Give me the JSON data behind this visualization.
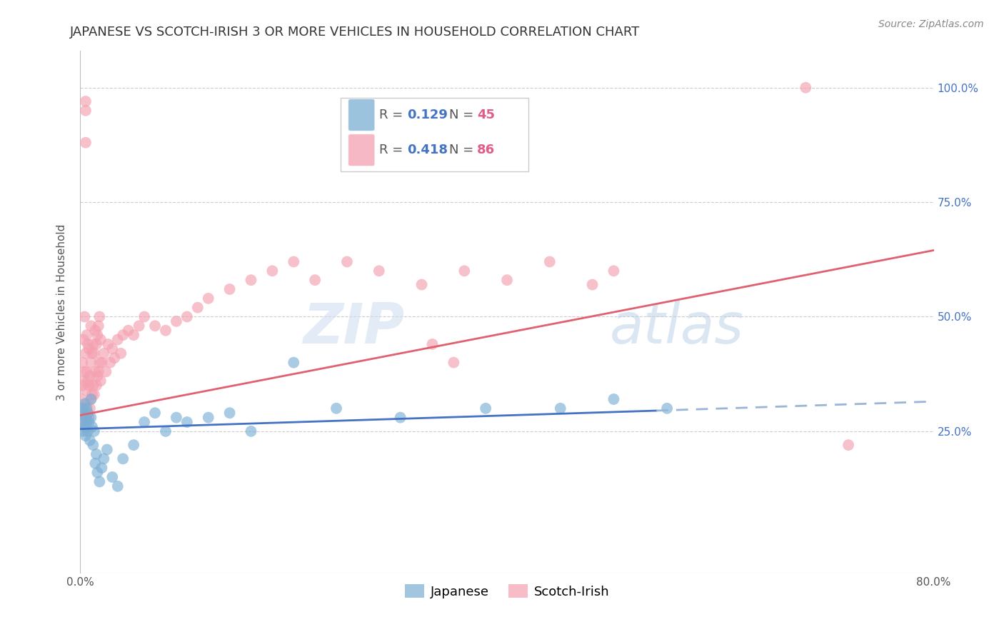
{
  "title": "JAPANESE VS SCOTCH-IRISH 3 OR MORE VEHICLES IN HOUSEHOLD CORRELATION CHART",
  "source": "Source: ZipAtlas.com",
  "ylabel": "3 or more Vehicles in Household",
  "xlim": [
    0.0,
    0.8
  ],
  "ylim": [
    -0.06,
    1.08
  ],
  "grid_color": "#cccccc",
  "background_color": "#ffffff",
  "japanese_color": "#7bafd4",
  "scotch_irish_color": "#f4a0b0",
  "japanese_R": 0.129,
  "japanese_N": 45,
  "scotch_irish_R": 0.418,
  "scotch_irish_N": 86,
  "jap_line_color": "#4472c4",
  "jap_line_dash_color": "#9ab5d8",
  "si_line_color": "#e06070",
  "legend_R_color": "#4472c4",
  "legend_N_color": "#e05c8a",
  "title_fontsize": 13,
  "axis_label_fontsize": 11,
  "tick_fontsize": 11,
  "legend_fontsize": 13,
  "japanese_scatter_x": [
    0.001,
    0.002,
    0.003,
    0.003,
    0.004,
    0.004,
    0.005,
    0.005,
    0.006,
    0.006,
    0.007,
    0.007,
    0.008,
    0.009,
    0.01,
    0.01,
    0.011,
    0.012,
    0.013,
    0.014,
    0.015,
    0.016,
    0.018,
    0.02,
    0.022,
    0.025,
    0.03,
    0.035,
    0.04,
    0.05,
    0.06,
    0.07,
    0.08,
    0.09,
    0.1,
    0.12,
    0.14,
    0.16,
    0.2,
    0.24,
    0.3,
    0.38,
    0.45,
    0.5,
    0.55
  ],
  "japanese_scatter_y": [
    0.27,
    0.3,
    0.25,
    0.29,
    0.26,
    0.31,
    0.24,
    0.28,
    0.27,
    0.3,
    0.25,
    0.29,
    0.27,
    0.23,
    0.28,
    0.32,
    0.26,
    0.22,
    0.25,
    0.18,
    0.2,
    0.16,
    0.14,
    0.17,
    0.19,
    0.21,
    0.15,
    0.13,
    0.19,
    0.22,
    0.27,
    0.29,
    0.25,
    0.28,
    0.27,
    0.28,
    0.29,
    0.25,
    0.4,
    0.3,
    0.28,
    0.3,
    0.3,
    0.32,
    0.3
  ],
  "scotch_irish_scatter_x": [
    0.001,
    0.001,
    0.002,
    0.002,
    0.002,
    0.003,
    0.003,
    0.003,
    0.004,
    0.004,
    0.004,
    0.005,
    0.005,
    0.005,
    0.006,
    0.006,
    0.006,
    0.007,
    0.007,
    0.007,
    0.008,
    0.008,
    0.008,
    0.009,
    0.009,
    0.01,
    0.01,
    0.01,
    0.011,
    0.011,
    0.012,
    0.012,
    0.013,
    0.013,
    0.014,
    0.014,
    0.015,
    0.015,
    0.016,
    0.016,
    0.017,
    0.017,
    0.018,
    0.018,
    0.019,
    0.019,
    0.02,
    0.022,
    0.024,
    0.026,
    0.028,
    0.03,
    0.032,
    0.035,
    0.038,
    0.04,
    0.045,
    0.05,
    0.055,
    0.06,
    0.07,
    0.08,
    0.09,
    0.1,
    0.11,
    0.12,
    0.14,
    0.16,
    0.18,
    0.2,
    0.22,
    0.25,
    0.28,
    0.32,
    0.36,
    0.4,
    0.44,
    0.005,
    0.005,
    0.68,
    0.72,
    0.48,
    0.5,
    0.005,
    0.33,
    0.35
  ],
  "scotch_irish_scatter_y": [
    0.27,
    0.32,
    0.28,
    0.35,
    0.4,
    0.29,
    0.36,
    0.45,
    0.3,
    0.38,
    0.5,
    0.27,
    0.34,
    0.42,
    0.31,
    0.38,
    0.46,
    0.29,
    0.36,
    0.44,
    0.28,
    0.35,
    0.43,
    0.3,
    0.37,
    0.32,
    0.4,
    0.48,
    0.33,
    0.42,
    0.35,
    0.44,
    0.33,
    0.42,
    0.38,
    0.47,
    0.35,
    0.44,
    0.37,
    0.46,
    0.38,
    0.48,
    0.4,
    0.5,
    0.36,
    0.45,
    0.4,
    0.42,
    0.38,
    0.44,
    0.4,
    0.43,
    0.41,
    0.45,
    0.42,
    0.46,
    0.47,
    0.46,
    0.48,
    0.5,
    0.48,
    0.47,
    0.49,
    0.5,
    0.52,
    0.54,
    0.56,
    0.58,
    0.6,
    0.62,
    0.58,
    0.62,
    0.6,
    0.57,
    0.6,
    0.58,
    0.62,
    0.97,
    0.95,
    1.0,
    0.22,
    0.57,
    0.6,
    0.88,
    0.44,
    0.4
  ],
  "jap_line_start_x": 0.0,
  "jap_line_start_y": 0.255,
  "jap_line_solid_end_x": 0.54,
  "jap_line_end_y": 0.295,
  "jap_line_dash_end_x": 0.8,
  "jap_line_dash_end_y": 0.315,
  "si_line_start_x": 0.0,
  "si_line_start_y": 0.285,
  "si_line_end_x": 0.8,
  "si_line_end_y": 0.645
}
